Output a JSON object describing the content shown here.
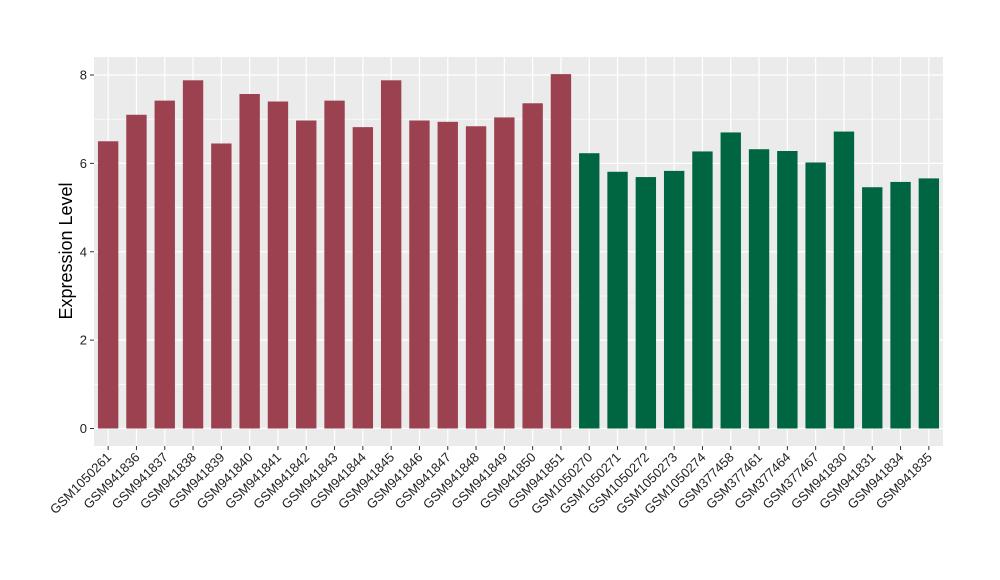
{
  "chart_data": {
    "type": "bar",
    "title": "",
    "xlabel": "",
    "ylabel": "Expression Level",
    "ylim": [
      0,
      8.3
    ],
    "yticks": [
      0,
      2,
      4,
      6,
      8
    ],
    "grid": true,
    "categories": [
      "GSM1050261",
      "GSM941836",
      "GSM941837",
      "GSM941838",
      "GSM941839",
      "GSM941840",
      "GSM941841",
      "GSM941842",
      "GSM941843",
      "GSM941844",
      "GSM941845",
      "GSM941846",
      "GSM941847",
      "GSM941848",
      "GSM941849",
      "GSM941850",
      "GSM941851",
      "GSM1050270",
      "GSM1050271",
      "GSM1050272",
      "GSM1050273",
      "GSM1050274",
      "GSM377458",
      "GSM377461",
      "GSM377464",
      "GSM377467",
      "GSM941830",
      "GSM941831",
      "GSM941834",
      "GSM941835"
    ],
    "values": [
      6.5,
      7.1,
      7.42,
      7.88,
      6.45,
      7.57,
      7.4,
      6.97,
      7.42,
      6.82,
      7.88,
      6.97,
      6.94,
      6.84,
      7.04,
      7.36,
      8.02,
      6.23,
      5.81,
      5.69,
      5.83,
      6.27,
      6.7,
      6.32,
      6.28,
      6.02,
      6.72,
      5.46,
      5.58,
      5.66
    ],
    "groups": [
      0,
      0,
      0,
      0,
      0,
      0,
      0,
      0,
      0,
      0,
      0,
      0,
      0,
      0,
      0,
      0,
      0,
      1,
      1,
      1,
      1,
      1,
      1,
      1,
      1,
      1,
      1,
      1,
      1,
      1
    ],
    "colors": [
      "#9b4150",
      "#006641"
    ],
    "panel_background": "#ebebeb"
  }
}
